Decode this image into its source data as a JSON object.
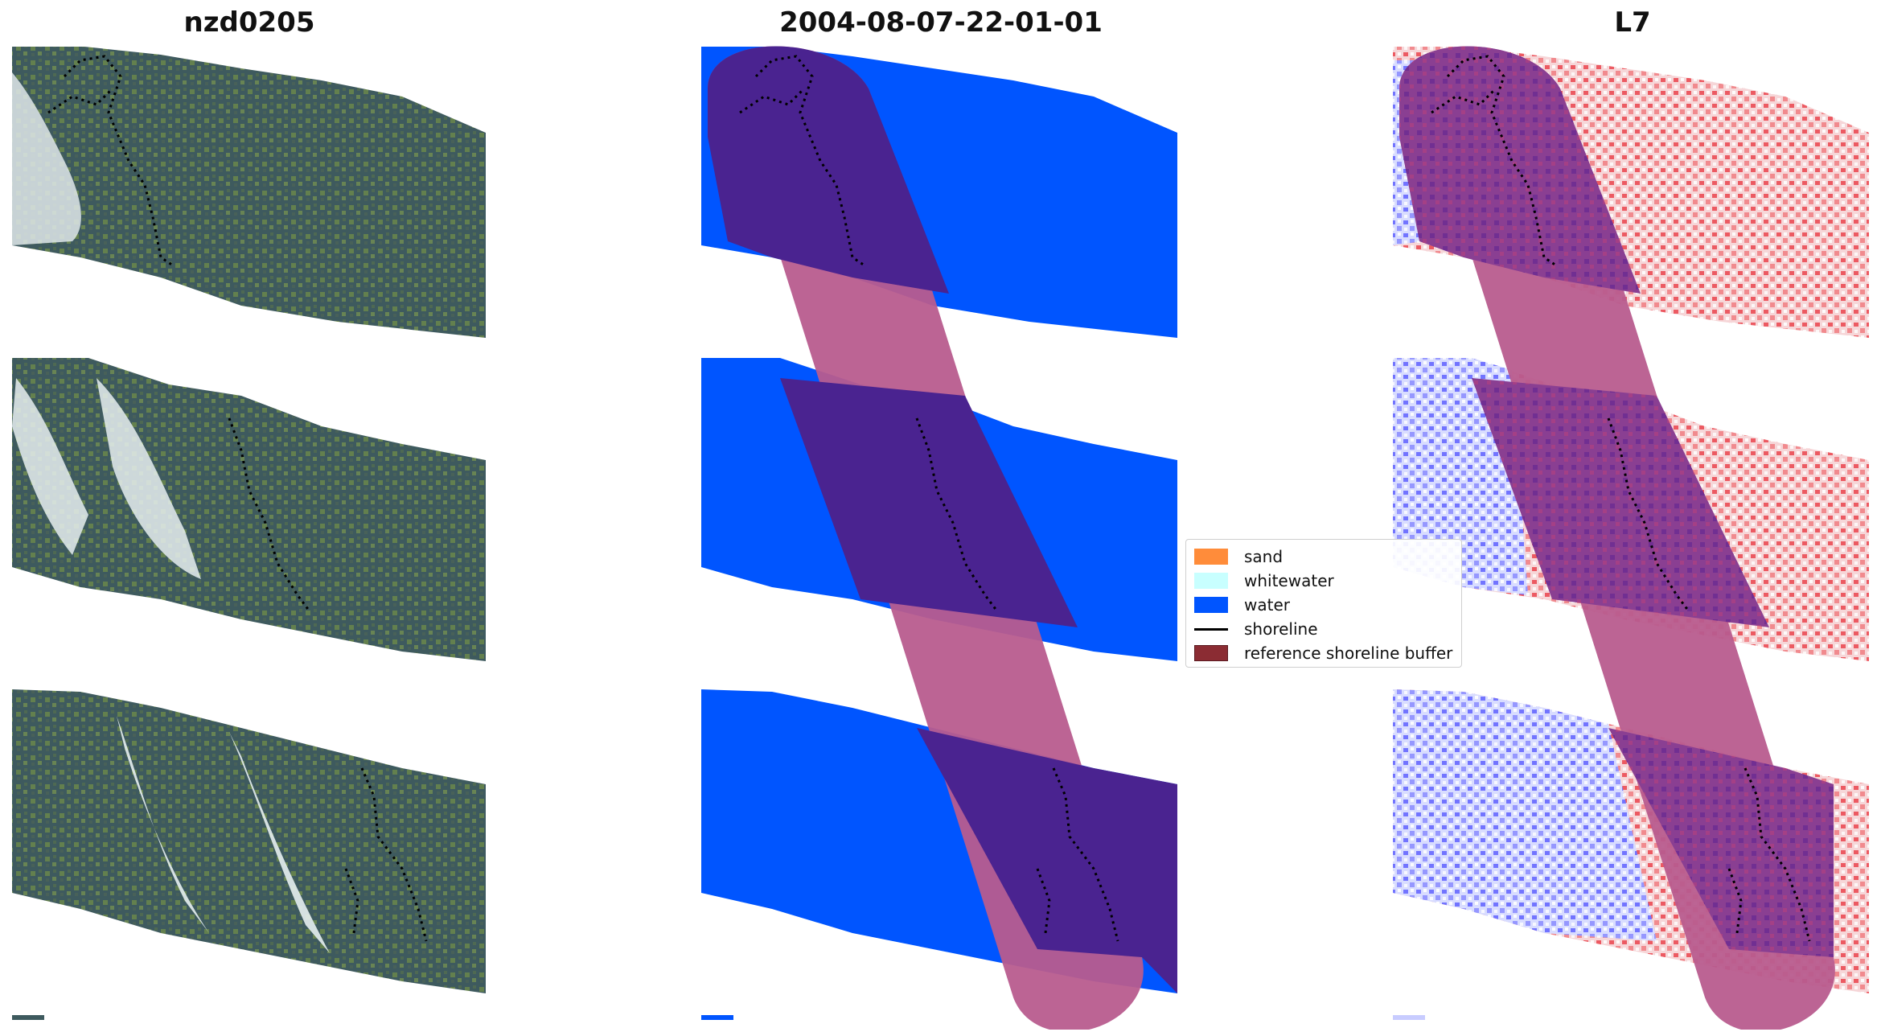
{
  "panels": [
    {
      "title": "nzd0205"
    },
    {
      "title": "2004-08-07-22-01-01"
    },
    {
      "title": "L7"
    }
  ],
  "legend": {
    "items": [
      {
        "label": "sand",
        "color": "#ff8c3a"
      },
      {
        "label": "whitewater",
        "color": "#c8ffff"
      },
      {
        "label": "water",
        "color": "#0055ff"
      },
      {
        "label": "shoreline",
        "color": "#000000"
      },
      {
        "label": "reference shoreline buffer",
        "color": "#8b2c33"
      }
    ]
  },
  "colors": {
    "rgb_base": "#3e5a5e",
    "water": "#0055ff",
    "buffer": "#b85c8e",
    "buffer_over_water": "#4a2390",
    "index_positive": "#e8303a",
    "index_negative": "#4848ff"
  }
}
